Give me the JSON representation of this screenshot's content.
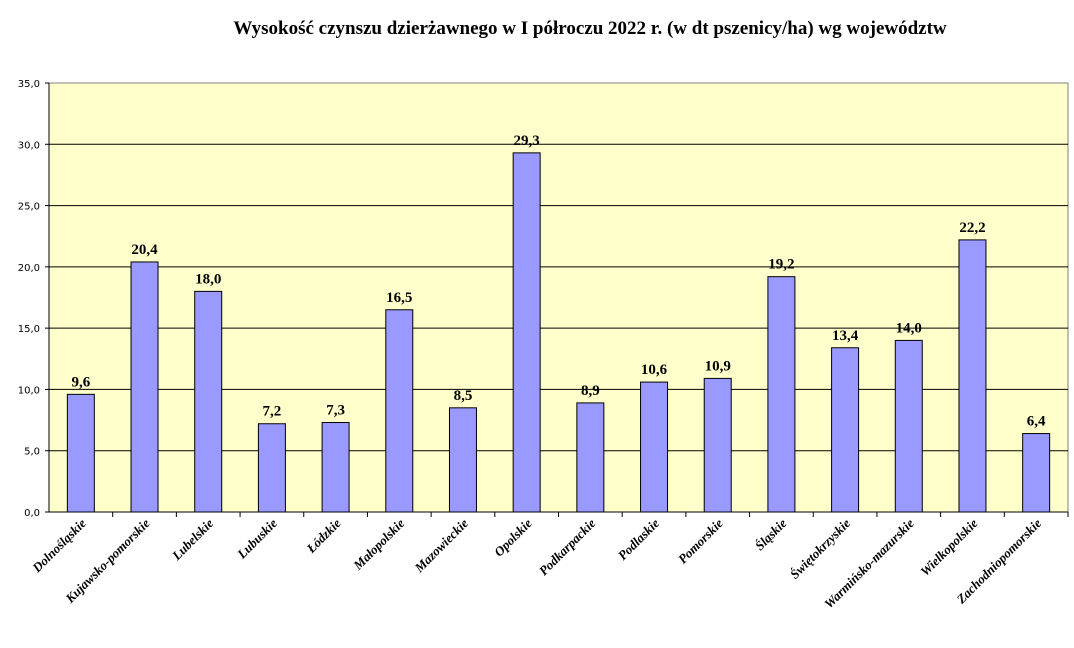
{
  "chart_data": {
    "type": "bar",
    "title": "Wysokość czynszu dzierżawnego w I półroczu 2022 r. (w dt pszenicy/ha) wg województw",
    "xlabel": "",
    "ylabel": "",
    "ylim": [
      0,
      35
    ],
    "yticks": [
      "0,0",
      "5,0",
      "10,0",
      "15,0",
      "20,0",
      "25,0",
      "30,0",
      "35,0"
    ],
    "grid": true,
    "legend": "none",
    "categories": [
      "Dolnośląskie",
      "Kujawsko-pomorskie",
      "Lubelskie",
      "Lubuskie",
      "Łódzkie",
      "Małopolskie",
      "Mazowieckie",
      "Opolskie",
      "Podkarpackie",
      "Podlaskie",
      "Pomorskie",
      "Śląskie",
      "Świętokrzyskie",
      "Warmińsko-mazurskie",
      "Wielkopolskie",
      "Zachodniopomorskie"
    ],
    "values": [
      9.6,
      20.4,
      18.0,
      7.2,
      7.3,
      16.5,
      8.5,
      29.3,
      8.9,
      10.6,
      10.9,
      19.2,
      13.4,
      14.0,
      22.2,
      6.4
    ],
    "data_labels": [
      "9,6",
      "20,4",
      "18,0",
      "7,2",
      "7,3",
      "16,5",
      "8,5",
      "29,3",
      "8,9",
      "10,6",
      "10,9",
      "19,2",
      "13,4",
      "14,0",
      "22,2",
      "6,4"
    ],
    "colors": {
      "bar": "#9999ff",
      "plot_bg": "#ffffcc",
      "grid": "#000000"
    }
  }
}
